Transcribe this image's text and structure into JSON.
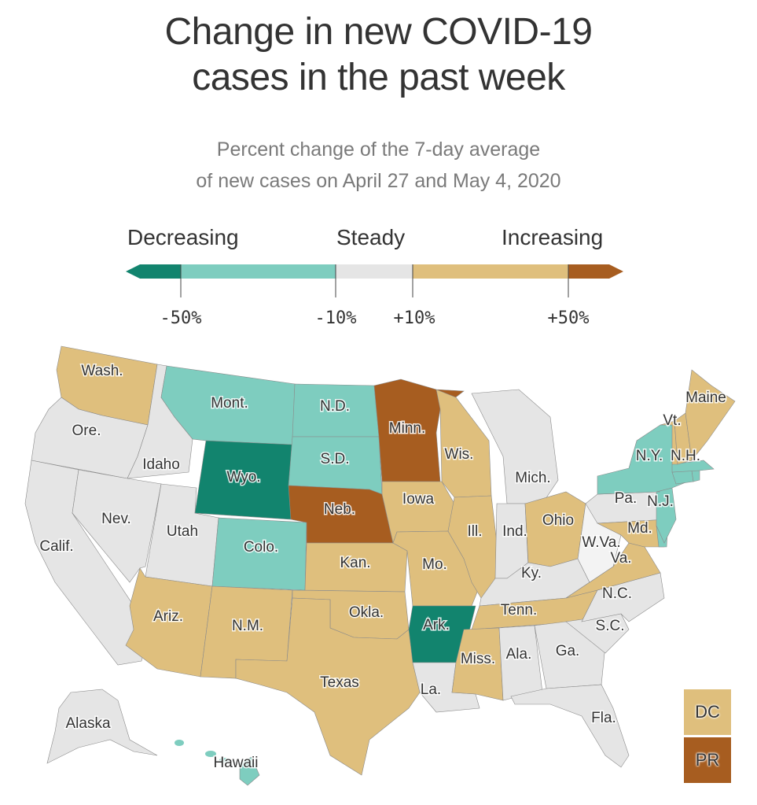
{
  "header": {
    "title_line1": "Change in new COVID-19",
    "title_line2": "cases in the past week",
    "subtitle_line1": "Percent change of the 7-day average",
    "subtitle_line2": "of new cases on April 27 and May 4, 2020"
  },
  "legend": {
    "labels": {
      "decreasing": "Decreasing",
      "steady": "Steady",
      "increasing": "Increasing"
    },
    "ticks": [
      "-50%",
      "-10%",
      "+10%",
      "+50%"
    ],
    "bins": [
      {
        "key": "strong_decrease",
        "range": "< -50%",
        "color": "#12846e"
      },
      {
        "key": "decrease",
        "range": "-50% to -10%",
        "color": "#7ecdbf"
      },
      {
        "key": "steady",
        "range": "-10% to +10%",
        "color": "#e5e5e5"
      },
      {
        "key": "increase",
        "range": "+10% to +50%",
        "color": "#dfbf7d"
      },
      {
        "key": "strong_increase",
        "range": "> +50%",
        "color": "#a75d20"
      }
    ]
  },
  "colors": {
    "strong_decrease": "#12846e",
    "decrease": "#7ecdbf",
    "steady": "#e5e5e5",
    "increase": "#dfbf7d",
    "strong_increase": "#a75d20",
    "nodata": "#f3f3f3"
  },
  "chart_data": {
    "type": "choropleth",
    "title": "Change in new COVID-19 cases in the past week",
    "subtitle": "Percent change of the 7-day average of new cases on April 27 and May 4, 2020",
    "legend_placement": "top",
    "states": [
      {
        "id": "WA",
        "label": "Wash.",
        "category": "increase"
      },
      {
        "id": "OR",
        "label": "Ore.",
        "category": "steady"
      },
      {
        "id": "CA",
        "label": "Calif.",
        "category": "steady"
      },
      {
        "id": "ID",
        "label": "Idaho",
        "category": "steady"
      },
      {
        "id": "NV",
        "label": "Nev.",
        "category": "steady"
      },
      {
        "id": "UT",
        "label": "Utah",
        "category": "steady"
      },
      {
        "id": "AZ",
        "label": "Ariz.",
        "category": "increase"
      },
      {
        "id": "MT",
        "label": "Mont.",
        "category": "decrease"
      },
      {
        "id": "WY",
        "label": "Wyo.",
        "category": "strong_decrease"
      },
      {
        "id": "CO",
        "label": "Colo.",
        "category": "decrease"
      },
      {
        "id": "NM",
        "label": "N.M.",
        "category": "increase"
      },
      {
        "id": "ND",
        "label": "N.D.",
        "category": "decrease"
      },
      {
        "id": "SD",
        "label": "S.D.",
        "category": "decrease"
      },
      {
        "id": "NE",
        "label": "Neb.",
        "category": "strong_increase"
      },
      {
        "id": "KS",
        "label": "Kan.",
        "category": "increase"
      },
      {
        "id": "OK",
        "label": "Okla.",
        "category": "increase"
      },
      {
        "id": "TX",
        "label": "Texas",
        "category": "increase"
      },
      {
        "id": "MN",
        "label": "Minn.",
        "category": "strong_increase"
      },
      {
        "id": "IA",
        "label": "Iowa",
        "category": "increase"
      },
      {
        "id": "MO",
        "label": "Mo.",
        "category": "increase"
      },
      {
        "id": "AR",
        "label": "Ark.",
        "category": "strong_decrease"
      },
      {
        "id": "LA",
        "label": "La.",
        "category": "steady"
      },
      {
        "id": "WI",
        "label": "Wis.",
        "category": "increase"
      },
      {
        "id": "IL",
        "label": "Ill.",
        "category": "increase"
      },
      {
        "id": "MI",
        "label": "Mich.",
        "category": "steady"
      },
      {
        "id": "IN",
        "label": "Ind.",
        "category": "steady"
      },
      {
        "id": "OH",
        "label": "Ohio",
        "category": "increase"
      },
      {
        "id": "KY",
        "label": "Ky.",
        "category": "steady"
      },
      {
        "id": "TN",
        "label": "Tenn.",
        "category": "increase"
      },
      {
        "id": "MS",
        "label": "Miss.",
        "category": "increase"
      },
      {
        "id": "AL",
        "label": "Ala.",
        "category": "steady"
      },
      {
        "id": "GA",
        "label": "Ga.",
        "category": "steady"
      },
      {
        "id": "FL",
        "label": "Fla.",
        "category": "steady"
      },
      {
        "id": "SC",
        "label": "S.C.",
        "category": "steady"
      },
      {
        "id": "NC",
        "label": "N.C.",
        "category": "steady"
      },
      {
        "id": "VA",
        "label": "Va.",
        "category": "increase"
      },
      {
        "id": "WV",
        "label": "W.Va.",
        "category": "nodata"
      },
      {
        "id": "PA",
        "label": "Pa.",
        "category": "steady"
      },
      {
        "id": "MD",
        "label": "Md.",
        "category": "increase"
      },
      {
        "id": "DE",
        "label": "",
        "category": "decrease"
      },
      {
        "id": "NJ",
        "label": "N.J.",
        "category": "decrease"
      },
      {
        "id": "NY",
        "label": "N.Y.",
        "category": "decrease"
      },
      {
        "id": "CT",
        "label": "",
        "category": "decrease"
      },
      {
        "id": "RI",
        "label": "",
        "category": "decrease"
      },
      {
        "id": "MA",
        "label": "",
        "category": "decrease"
      },
      {
        "id": "VT",
        "label": "Vt.",
        "category": "increase"
      },
      {
        "id": "NH",
        "label": "N.H.",
        "category": "increase"
      },
      {
        "id": "ME",
        "label": "Maine",
        "category": "increase"
      },
      {
        "id": "AK",
        "label": "Alaska",
        "category": "steady"
      },
      {
        "id": "HI",
        "label": "Hawaii",
        "category": "decrease"
      },
      {
        "id": "DC",
        "label": "DC",
        "category": "increase"
      },
      {
        "id": "PR",
        "label": "PR",
        "category": "strong_increase"
      }
    ]
  }
}
